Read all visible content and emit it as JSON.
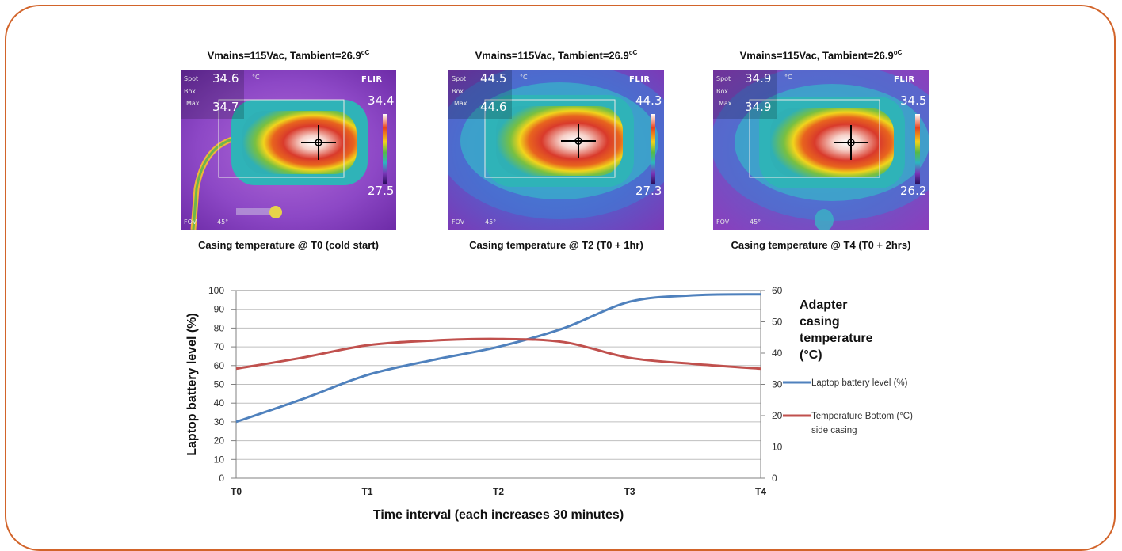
{
  "thermal_images": [
    {
      "condition": "Vmains=115Vac, Tambient=26.9",
      "condition_unit": "oC",
      "spot_label": "Spot",
      "box_label": "Box",
      "max_label": "Max",
      "spot_value": "34.6",
      "max_value": "34.7",
      "unit": "°C",
      "brand": "FLIR",
      "scale_high": "34.4",
      "scale_low": "27.5",
      "fov_label": "FOV",
      "fov_value": "45°",
      "caption": "Casing temperature @ T0 (cold start)"
    },
    {
      "condition": "Vmains=115Vac, Tambient=26.9",
      "condition_unit": "oC",
      "spot_label": "Spot",
      "box_label": "Box",
      "max_label": "Max",
      "spot_value": "44.5",
      "max_value": "44.6",
      "unit": "°C",
      "brand": "FLIR",
      "scale_high": "44.3",
      "scale_low": "27.3",
      "fov_label": "FOV",
      "fov_value": "45°",
      "caption": "Casing temperature @ T2 (T0 + 1hr)"
    },
    {
      "condition": "Vmains=115Vac, Tambient=26.9",
      "condition_unit": "oC",
      "spot_label": "Spot",
      "box_label": "Box",
      "max_label": "Max",
      "spot_value": "34.9",
      "max_value": "34.9",
      "unit": "°C",
      "brand": "FLIR",
      "scale_high": "34.5",
      "scale_low": "26.2",
      "fov_label": "FOV",
      "fov_value": "45°",
      "caption": "Casing temperature @ T4 (T0 + 2hrs)"
    }
  ],
  "chart_data": {
    "type": "line",
    "categories": [
      "T0",
      "T1",
      "T2",
      "T3",
      "T4"
    ],
    "x": [
      0,
      0.5,
      1,
      1.5,
      2,
      2.5,
      3,
      3.5,
      4
    ],
    "xlabel": "Time interval (each increases 30 minutes)",
    "ylabel": "Laptop battery level (%)",
    "ylim": [
      0,
      100
    ],
    "yticks": [
      "0",
      "10",
      "20",
      "30",
      "40",
      "50",
      "60",
      "70",
      "80",
      "90",
      "100"
    ],
    "y2label_lines": [
      "Adapter",
      "casing",
      "temperature",
      "(°C)"
    ],
    "y2lim": [
      0,
      60
    ],
    "y2ticks": [
      "0",
      "10",
      "20",
      "30",
      "40",
      "50",
      "60"
    ],
    "grid": true,
    "legend_position": "right",
    "series": [
      {
        "name": "Laptop battery level (%)",
        "axis": "left",
        "color": "#4f81bd",
        "values": [
          30,
          42,
          55,
          63,
          70,
          80,
          94,
          97.5,
          98
        ]
      },
      {
        "name": "Temperature Bottom (°C) side casing",
        "name_lines": [
          "Temperature Bottom (°C)",
          "side casing"
        ],
        "axis": "right",
        "color": "#c0504d",
        "values": [
          35,
          38.5,
          42.5,
          44,
          44.5,
          43.5,
          38.5,
          36.5,
          35
        ]
      }
    ]
  }
}
